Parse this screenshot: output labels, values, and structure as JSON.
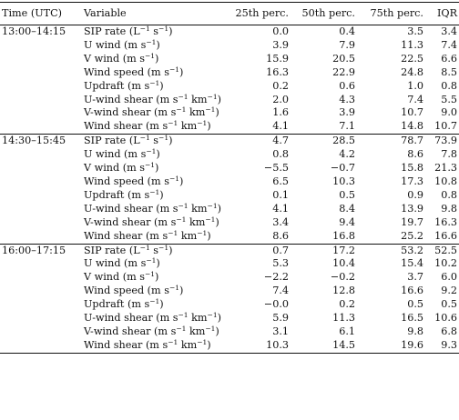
{
  "table": {
    "headers": {
      "time": "Time (UTC)",
      "variable": "Variable",
      "p25": "25th perc.",
      "p50": "50th perc.",
      "p75": "75th perc.",
      "iqr": "IQR"
    },
    "groups": [
      {
        "time": "13:00–14:15",
        "rows": [
          {
            "var": "SIP rate (L^−1 s^−1)",
            "p25": "0.0",
            "p50": "0.4",
            "p75": "3.5",
            "iqr": "3.4"
          },
          {
            "var": "U wind (m s^−1)",
            "p25": "3.9",
            "p50": "7.9",
            "p75": "11.3",
            "iqr": "7.4"
          },
          {
            "var": "V wind (m s^−1)",
            "p25": "15.9",
            "p50": "20.5",
            "p75": "22.5",
            "iqr": "6.6"
          },
          {
            "var": "Wind speed (m s^−1)",
            "p25": "16.3",
            "p50": "22.9",
            "p75": "24.8",
            "iqr": "8.5"
          },
          {
            "var": "Updraft (m s^−1)",
            "p25": "0.2",
            "p50": "0.6",
            "p75": "1.0",
            "iqr": "0.8"
          },
          {
            "var": "U-wind shear (m s^−1 km^−1)",
            "p25": "2.0",
            "p50": "4.3",
            "p75": "7.4",
            "iqr": "5.5"
          },
          {
            "var": "V-wind shear (m s^−1 km^−1)",
            "p25": "1.6",
            "p50": "3.9",
            "p75": "10.7",
            "iqr": "9.0"
          },
          {
            "var": "Wind shear (m s^−1 km^−1)",
            "p25": "4.1",
            "p50": "7.1",
            "p75": "14.8",
            "iqr": "10.7"
          }
        ]
      },
      {
        "time": "14:30–15:45",
        "rows": [
          {
            "var": "SIP rate (L^−1 s^−1)",
            "p25": "4.7",
            "p50": "28.5",
            "p75": "78.7",
            "iqr": "73.9"
          },
          {
            "var": "U wind (m s^−1)",
            "p25": "0.8",
            "p50": "4.2",
            "p75": "8.6",
            "iqr": "7.8"
          },
          {
            "var": "V wind (m s^−1)",
            "p25": "−5.5",
            "p50": "−0.7",
            "p75": "15.8",
            "iqr": "21.3"
          },
          {
            "var": "Wind speed (m s^−1)",
            "p25": "6.5",
            "p50": "10.3",
            "p75": "17.3",
            "iqr": "10.8"
          },
          {
            "var": "Updraft (m s^−1)",
            "p25": "0.1",
            "p50": "0.5",
            "p75": "0.9",
            "iqr": "0.8"
          },
          {
            "var": "U-wind shear (m s^−1 km^−1)",
            "p25": "4.1",
            "p50": "8.4",
            "p75": "13.9",
            "iqr": "9.8"
          },
          {
            "var": "V-wind shear (m s^−1 km^−1)",
            "p25": "3.4",
            "p50": "9.4",
            "p75": "19.7",
            "iqr": "16.3"
          },
          {
            "var": "Wind shear (m s^−1 km^−1)",
            "p25": "8.6",
            "p50": "16.8",
            "p75": "25.2",
            "iqr": "16.6"
          }
        ]
      },
      {
        "time": "16:00–17:15",
        "rows": [
          {
            "var": "SIP rate (L^−1 s^−1)",
            "p25": "0.7",
            "p50": "17.2",
            "p75": "53.2",
            "iqr": "52.5"
          },
          {
            "var": "U wind (m s^−1)",
            "p25": "5.3",
            "p50": "10.4",
            "p75": "15.4",
            "iqr": "10.2"
          },
          {
            "var": "V wind (m s^−1)",
            "p25": "−2.2",
            "p50": "−0.2",
            "p75": "3.7",
            "iqr": "6.0"
          },
          {
            "var": "Wind speed (m s^−1)",
            "p25": "7.4",
            "p50": "12.8",
            "p75": "16.6",
            "iqr": "9.2"
          },
          {
            "var": "Updraft (m s^−1)",
            "p25": "−0.0",
            "p50": "0.2",
            "p75": "0.5",
            "iqr": "0.5"
          },
          {
            "var": "U-wind shear (m s^−1 km^−1)",
            "p25": "5.9",
            "p50": "11.3",
            "p75": "16.5",
            "iqr": "10.6"
          },
          {
            "var": "V-wind shear (m s^−1 km^−1)",
            "p25": "3.1",
            "p50": "6.1",
            "p75": "9.8",
            "iqr": "6.8"
          },
          {
            "var": "Wind shear (m s^−1 km^−1)",
            "p25": "10.3",
            "p50": "14.5",
            "p75": "19.6",
            "iqr": "9.3"
          }
        ]
      }
    ]
  }
}
